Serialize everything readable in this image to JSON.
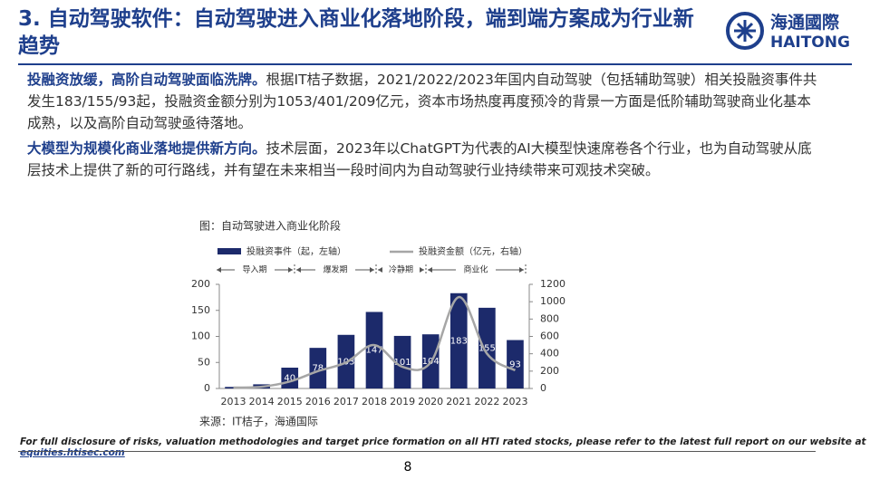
{
  "header": {
    "title": "3. 自动驾驶软件：自动驾驶进入商业化落地阶段，端到端方案成为行业新趋势",
    "logo_cn": "海通國際",
    "logo_en": "HAITONG"
  },
  "paragraphs": [
    {
      "lead": "投融资放缓，高阶自动驾驶面临洗牌。",
      "text": "根据IT桔子数据，2021/2022/2023年国内自动驾驶（包括辅助驾驶）相关投融资事件共发生183/155/93起，投融资金额分别为1053/401/209亿元，资本市场热度再度预冷的背景一方面是低阶辅助驾驶商业化基本成熟，以及高阶自动驾驶亟待落地。"
    },
    {
      "lead": "大模型为规模化商业落地提供新方向。",
      "text": "技术层面，2023年以ChatGPT为代表的AI大模型快速席卷各个行业，也为自动驾驶从底层技术上提供了新的可行路线，并有望在未来相当一段时间内为自动驾驶行业持续带来可观技术突破。"
    }
  ],
  "figure": {
    "caption": "图：自动驾驶进入商业化阶段",
    "phases": [
      "导入期",
      "爆发期",
      "冷静期",
      "商业化"
    ],
    "source": "来源：IT桔子，海通国际"
  },
  "chart_data": {
    "type": "bar",
    "categories": [
      "2013",
      "2014",
      "2015",
      "2016",
      "2017",
      "2018",
      "2019",
      "2020",
      "2021",
      "2022",
      "2023"
    ],
    "series": [
      {
        "name": "投融资事件（起，左轴）",
        "type": "bar",
        "color": "#1c2a6b",
        "values": [
          3,
          8,
          40,
          78,
          103,
          147,
          101,
          104,
          183,
          155,
          93
        ],
        "value_labels": [
          null,
          null,
          "40",
          "78",
          "103",
          "147",
          "101",
          "104",
          "183",
          "155",
          "93"
        ]
      },
      {
        "name": "投融资金额（亿元，右轴）",
        "type": "line",
        "axis": "y2",
        "color": "#a6a6a6",
        "values": [
          10,
          20,
          80,
          200,
          300,
          500,
          250,
          300,
          1053,
          401,
          209
        ]
      }
    ],
    "ylim": [
      0,
      200
    ],
    "yticks": [
      0,
      50,
      100,
      150,
      200
    ],
    "y2lim": [
      0,
      1200
    ],
    "y2ticks": [
      0,
      200,
      400,
      600,
      800,
      1000,
      1200
    ]
  },
  "footer": {
    "disclaimer": "For full disclosure of risks, valuation methodologies and target price formation on all HTI rated stocks, please refer to the latest full report on our website at ",
    "link": "equities.htisec.com",
    "page": "8"
  }
}
